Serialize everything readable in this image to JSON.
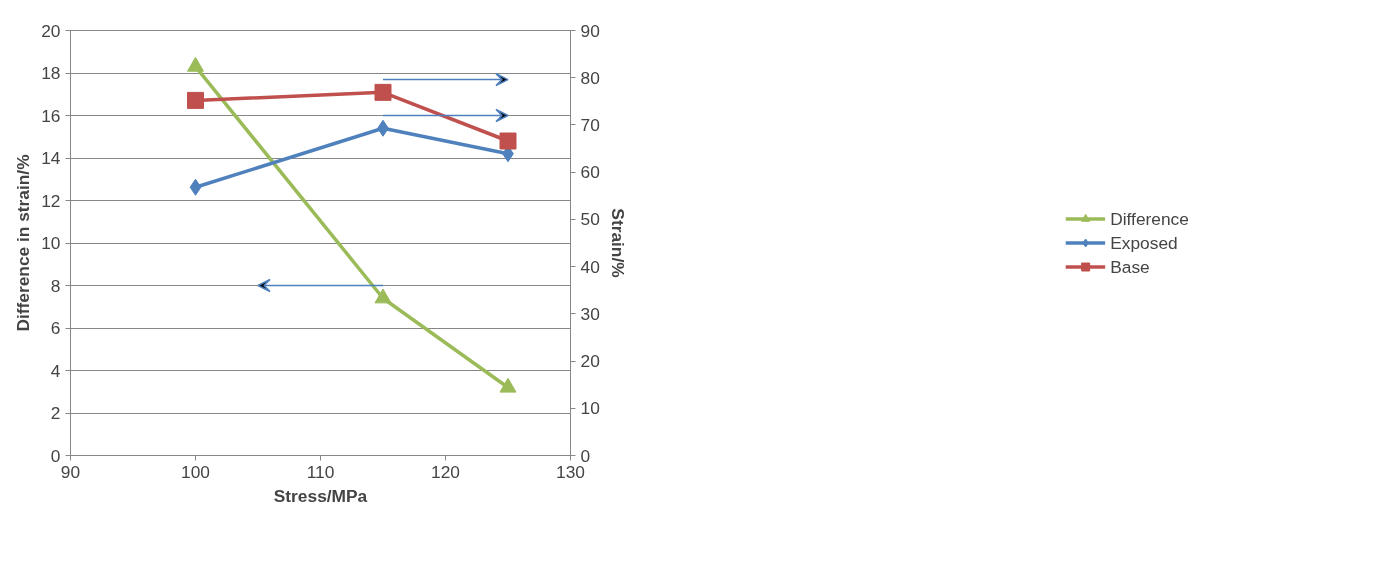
{
  "chart_data": {
    "type": "line",
    "xlabel": "Stress/MPa",
    "ylabel": "Difference in strain/%",
    "y2label": "Strain/%",
    "x": [
      100,
      115,
      125
    ],
    "series": [
      {
        "name": "Difference",
        "color": "#9bbb59",
        "values": [
          18.3,
          7.4,
          3.2
        ],
        "marker": "triangle"
      },
      {
        "name": "Exposed",
        "color": "#4f81bd",
        "values": [
          56.8,
          69.3,
          63.9
        ],
        "marker": "diamond",
        "axis": "y2"
      },
      {
        "name": "Base",
        "color": "#c0504d",
        "values": [
          75.2,
          76.9,
          66.6
        ],
        "marker": "square",
        "axis": "y2"
      }
    ],
    "xlim": [
      90,
      130
    ],
    "xticks": [
      90,
      100,
      110,
      120,
      130
    ],
    "ylim": [
      0,
      20
    ],
    "yticks": [
      0,
      2,
      4,
      6,
      8,
      10,
      12,
      14,
      16,
      18,
      20
    ],
    "y2lim": [
      0,
      90
    ],
    "y2ticks": [
      0,
      10,
      20,
      30,
      40,
      50,
      60,
      70,
      80,
      90
    ],
    "grid": "y",
    "legend": "right",
    "line_style": "solid"
  }
}
